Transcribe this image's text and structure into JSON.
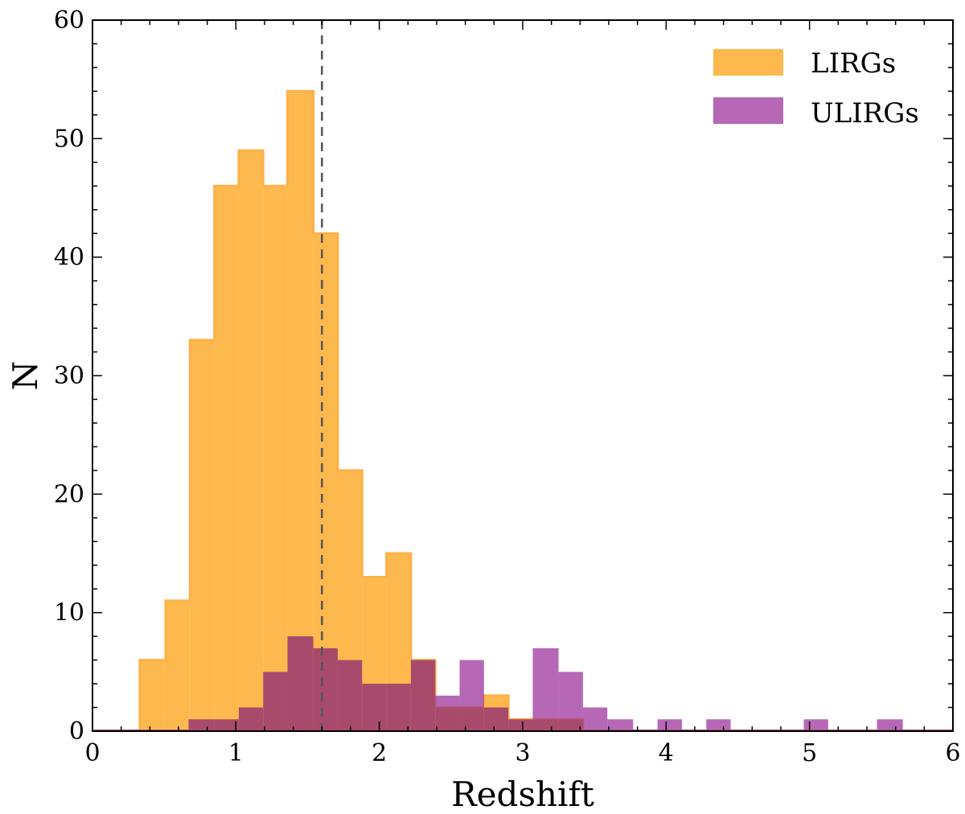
{
  "chart_data": {
    "type": "histogram",
    "title": "",
    "xlabel": "Redshift",
    "ylabel": "N",
    "xlim": [
      0,
      6
    ],
    "ylim": [
      0,
      60
    ],
    "xticks": [
      0,
      1,
      2,
      3,
      4,
      5,
      6
    ],
    "yticks": [
      0,
      10,
      20,
      30,
      40,
      50,
      60
    ],
    "xtick_labels": [
      "0",
      "1",
      "2",
      "3",
      "4",
      "5",
      "6"
    ],
    "ytick_labels": [
      "0",
      "10",
      "20",
      "30",
      "40",
      "50",
      "60"
    ],
    "reference_line": {
      "x": 1.6,
      "style": "dashed"
    },
    "legend": {
      "position": "top-right",
      "entries": [
        "LIRGs",
        "ULIRGs"
      ]
    },
    "series": [
      {
        "name": "LIRGs",
        "color": "#fdb94d",
        "edge_color": "#fcb14a",
        "bin_edges": [
          0.33,
          0.51,
          0.68,
          0.85,
          1.02,
          1.19,
          1.36,
          1.54,
          1.71,
          1.88,
          2.05,
          2.22,
          2.39,
          2.56,
          2.73,
          2.9,
          3.07,
          3.25,
          3.42
        ],
        "counts": [
          6,
          11,
          33,
          46,
          49,
          46,
          54,
          42,
          22,
          13,
          15,
          6,
          2,
          2,
          3,
          1,
          1,
          1
        ]
      },
      {
        "name": "ULIRGs",
        "color": "#9a2e9a",
        "overlap_color": "#a84a6c",
        "bin_edges": [
          0.67,
          0.85,
          1.02,
          1.19,
          1.36,
          1.54,
          1.71,
          1.88,
          2.05,
          2.22,
          2.39,
          2.56,
          2.73,
          2.9,
          3.07,
          3.25,
          3.42,
          3.59,
          3.77,
          3.94,
          4.11,
          4.28,
          4.45,
          4.62,
          4.79,
          4.96,
          5.13,
          5.3,
          5.47,
          5.65
        ],
        "counts": [
          1,
          1,
          2,
          5,
          8,
          7,
          6,
          4,
          4,
          6,
          3,
          6,
          2,
          1,
          7,
          5,
          2,
          1,
          0,
          1,
          0,
          1,
          0,
          0,
          0,
          1,
          0,
          0,
          1
        ]
      }
    ]
  }
}
